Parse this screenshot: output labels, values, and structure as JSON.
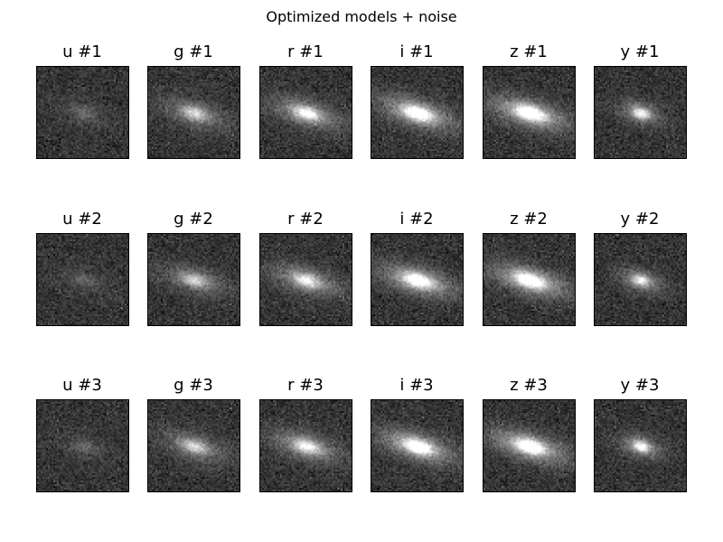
{
  "figure": {
    "title": "Optimized models + noise"
  },
  "bands": [
    "u",
    "g",
    "r",
    "i",
    "z",
    "y"
  ],
  "rows": [
    "#1",
    "#2",
    "#3"
  ],
  "panels": [
    [
      {
        "title": "u #1",
        "brightness": 0.18
      },
      {
        "title": "g #1",
        "brightness": 0.55
      },
      {
        "title": "r #1",
        "brightness": 0.72
      },
      {
        "title": "i #1",
        "brightness": 0.95
      },
      {
        "title": "z #1",
        "brightness": 1.0
      },
      {
        "title": "y #1",
        "brightness": 0.7
      }
    ],
    [
      {
        "title": "u #2",
        "brightness": 0.16
      },
      {
        "title": "g #2",
        "brightness": 0.52
      },
      {
        "title": "r #2",
        "brightness": 0.68
      },
      {
        "title": "i #2",
        "brightness": 0.92
      },
      {
        "title": "z #2",
        "brightness": 0.98
      },
      {
        "title": "y #2",
        "brightness": 0.68
      }
    ],
    [
      {
        "title": "u #3",
        "brightness": 0.17
      },
      {
        "title": "g #3",
        "brightness": 0.56
      },
      {
        "title": "r #3",
        "brightness": 0.7
      },
      {
        "title": "i #3",
        "brightness": 0.95
      },
      {
        "title": "z #3",
        "brightness": 0.98
      },
      {
        "title": "y #3",
        "brightness": 0.72
      }
    ]
  ],
  "colors": {
    "background": "#383838",
    "frame": "#000000"
  }
}
